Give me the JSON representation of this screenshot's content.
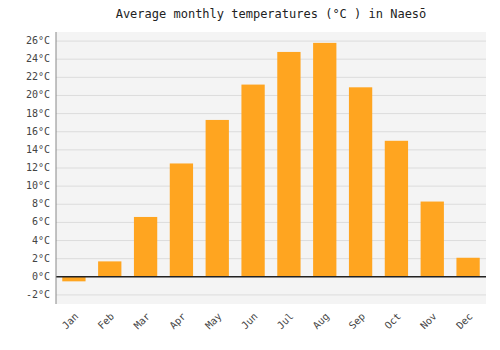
{
  "chart_data": {
    "type": "bar",
    "title": "Average monthly temperatures (°C ) in Naesō",
    "categories": [
      "Jan",
      "Feb",
      "Mar",
      "Apr",
      "May",
      "Jun",
      "Jul",
      "Aug",
      "Sep",
      "Oct",
      "Nov",
      "Dec"
    ],
    "values": [
      -0.5,
      1.7,
      6.6,
      12.5,
      17.3,
      21.2,
      24.8,
      25.8,
      20.9,
      15.0,
      8.3,
      2.1
    ],
    "color": "#FFA520",
    "ylim": [
      -3,
      27
    ],
    "yticks": [
      {
        "value": -2,
        "label": "-2°C"
      },
      {
        "value": 0,
        "label": "0°C"
      },
      {
        "value": 2,
        "label": "2°C"
      },
      {
        "value": 4,
        "label": "4°C"
      },
      {
        "value": 6,
        "label": "6°C"
      },
      {
        "value": 8,
        "label": "8°C"
      },
      {
        "value": 10,
        "label": "10°C"
      },
      {
        "value": 12,
        "label": "12°C"
      },
      {
        "value": 14,
        "label": "14°C"
      },
      {
        "value": 16,
        "label": "16°C"
      },
      {
        "value": 18,
        "label": "18°C"
      },
      {
        "value": 20,
        "label": "20°C"
      },
      {
        "value": 22,
        "label": "22°C"
      },
      {
        "value": 24,
        "label": "24°C"
      },
      {
        "value": 26,
        "label": "26°C"
      }
    ],
    "grid": true
  }
}
